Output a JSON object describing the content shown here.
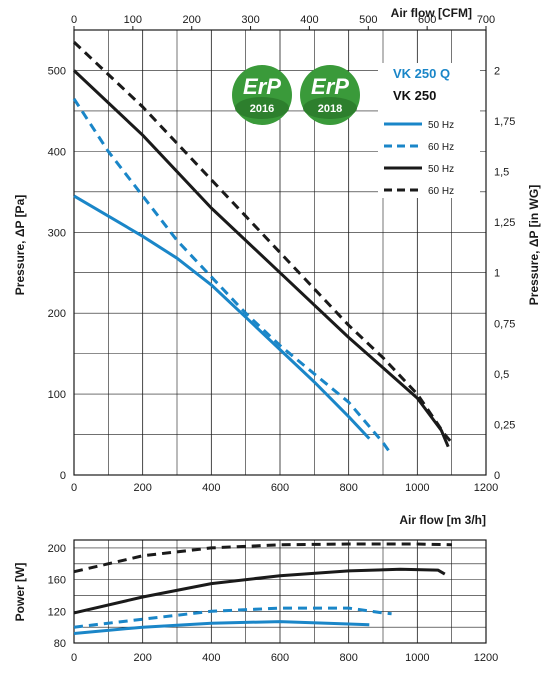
{
  "colors": {
    "series_50hz_q": "#1a86c8",
    "series_60hz_q": "#1a86c8",
    "series_50hz": "#1a1a1a",
    "series_60hz": "#1a1a1a",
    "badge_green": "#3a9a3a",
    "model_q_color": "#1a86c8"
  },
  "badges": [
    {
      "label": "ErP",
      "year": "2016"
    },
    {
      "label": "ErP",
      "year": "2018"
    }
  ],
  "legend": {
    "model_q": "VK 250 Q",
    "model": "VK 250",
    "entries": [
      {
        "label": "50 Hz",
        "style": "solid",
        "color": "#1a86c8"
      },
      {
        "label": "60 Hz",
        "style": "dashed",
        "color": "#1a86c8"
      },
      {
        "label": "50 Hz",
        "style": "solid",
        "color": "#1a1a1a"
      },
      {
        "label": "60 Hz",
        "style": "dashed",
        "color": "#1a1a1a"
      }
    ]
  },
  "chart_data": [
    {
      "type": "line",
      "title": "",
      "xlabel": "Air flow [m 3/h]",
      "ylabel": "Pressure, ΔP [Pa]",
      "x2label": "Air flow [CFM]",
      "y2label": "Pressure, ΔP [in WG]",
      "xlim": [
        0,
        1200
      ],
      "ylim": [
        0,
        550
      ],
      "x2lim": [
        0,
        700
      ],
      "y2lim": [
        0,
        2.2
      ],
      "x_ticks": [
        "0",
        "200",
        "400",
        "600",
        "800",
        "1000",
        "1200"
      ],
      "y_ticks": [
        "0",
        "100",
        "200",
        "300",
        "400",
        "500"
      ],
      "x2_ticks": [
        "0",
        "100",
        "200",
        "300",
        "400",
        "500",
        "600",
        "700"
      ],
      "y2_ticks": [
        "0,25",
        "0,5",
        "0,75",
        "1",
        "1,25",
        "1,5",
        "1,75",
        "2"
      ],
      "grid": true,
      "series": [
        {
          "name": "50 Hz",
          "color": "#1a86c8",
          "dash": false,
          "x": [
            0,
            100,
            200,
            300,
            400,
            500,
            600,
            700,
            800,
            860
          ],
          "y": [
            345,
            320,
            295,
            268,
            235,
            195,
            155,
            115,
            72,
            45
          ]
        },
        {
          "name": "60 Hz",
          "color": "#1a86c8",
          "dash": true,
          "x": [
            0,
            100,
            200,
            300,
            400,
            500,
            600,
            700,
            800,
            900,
            925
          ],
          "y": [
            465,
            400,
            345,
            290,
            245,
            200,
            160,
            125,
            90,
            40,
            25
          ]
        },
        {
          "name": "50 Hz",
          "color": "#1a1a1a",
          "dash": false,
          "x": [
            0,
            200,
            400,
            600,
            800,
            1000,
            1070,
            1090
          ],
          "y": [
            500,
            420,
            330,
            250,
            170,
            95,
            55,
            35
          ]
        },
        {
          "name": "60 Hz",
          "color": "#1a1a1a",
          "dash": true,
          "x": [
            0,
            200,
            400,
            600,
            800,
            900,
            1000,
            1080,
            1100
          ],
          "y": [
            535,
            455,
            365,
            275,
            185,
            145,
            100,
            50,
            40
          ]
        }
      ]
    },
    {
      "type": "line",
      "title": "",
      "xlabel": "",
      "ylabel": "Power [W]",
      "xlim": [
        0,
        1200
      ],
      "ylim": [
        80,
        210
      ],
      "x_ticks": [
        "0",
        "200",
        "400",
        "600",
        "800",
        "1000",
        "1200"
      ],
      "y_ticks": [
        "80",
        "120",
        "160",
        "200"
      ],
      "grid": true,
      "series": [
        {
          "name": "50 Hz",
          "color": "#1a86c8",
          "dash": false,
          "x": [
            0,
            200,
            400,
            600,
            800,
            860
          ],
          "y": [
            92,
            100,
            105,
            107,
            104,
            103
          ]
        },
        {
          "name": "60 Hz",
          "color": "#1a86c8",
          "dash": true,
          "x": [
            0,
            200,
            400,
            600,
            800,
            900,
            925
          ],
          "y": [
            100,
            110,
            120,
            124,
            124,
            118,
            117
          ]
        },
        {
          "name": "50 Hz",
          "color": "#1a1a1a",
          "dash": false,
          "x": [
            0,
            200,
            400,
            600,
            800,
            950,
            1060,
            1080
          ],
          "y": [
            118,
            138,
            155,
            165,
            171,
            173,
            172,
            167
          ]
        },
        {
          "name": "60 Hz",
          "color": "#1a1a1a",
          "dash": true,
          "x": [
            0,
            200,
            400,
            600,
            800,
            1000,
            1100
          ],
          "y": [
            170,
            190,
            200,
            204,
            205,
            205,
            204
          ]
        }
      ]
    }
  ]
}
